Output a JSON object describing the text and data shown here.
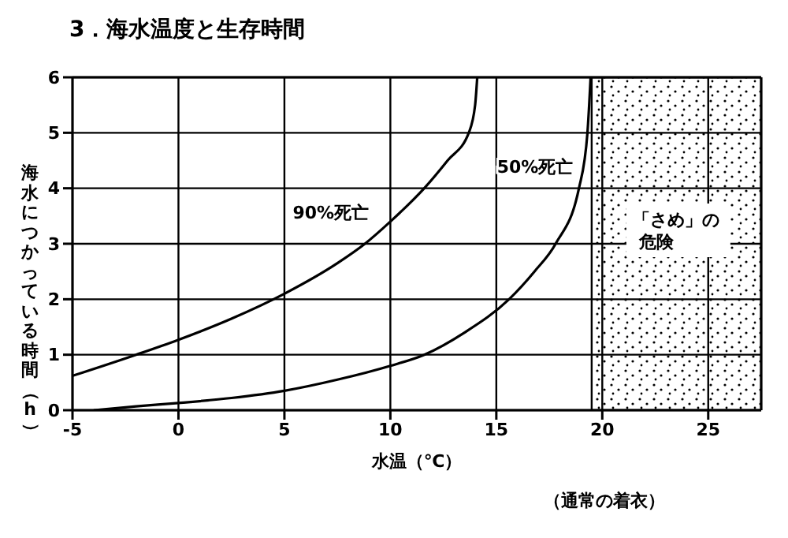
{
  "chart_data": {
    "type": "line",
    "title": "3．海水温度と生存時間",
    "xlabel": "水温（℃）",
    "ylabel": "海水につかっている時間（h）",
    "annotations": [
      "（通常の着衣）"
    ],
    "series": [
      {
        "name": "90%死亡",
        "color": "#000000",
        "x": [
          -5,
          -2,
          0,
          2.5,
          5,
          7.5,
          8.8,
          10,
          11.6,
          12.7,
          13.7,
          14,
          14.1
        ],
        "values": [
          0.62,
          1.0,
          1.27,
          1.65,
          2.1,
          2.65,
          3.0,
          3.4,
          4.0,
          4.5,
          5.0,
          5.5,
          6.0
        ]
      },
      {
        "name": "50%死亡",
        "color": "#000000",
        "x": [
          -4,
          -2,
          0,
          2.5,
          5,
          7.5,
          10,
          11.6,
          13.5,
          15.6,
          16.8,
          17.8,
          18.9,
          19.3,
          19.45
        ],
        "values": [
          0,
          0.07,
          0.13,
          0.22,
          0.35,
          0.55,
          0.8,
          1.0,
          1.4,
          2.0,
          2.5,
          3.0,
          4.0,
          5.0,
          6.0
        ]
      }
    ],
    "bands": [
      {
        "axis": "x",
        "from": 19.5,
        "to": 27.5,
        "label": "「さめ」の危険"
      }
    ],
    "xlim": [
      -5,
      27.5
    ],
    "xticks": [
      -5,
      0,
      5,
      10,
      15,
      20,
      25
    ],
    "ylim": [
      0,
      6
    ],
    "yticks": [
      0,
      1,
      2,
      3,
      4,
      5,
      6
    ],
    "grid": true,
    "legend": false,
    "marker": "none",
    "line_style": "solid"
  }
}
